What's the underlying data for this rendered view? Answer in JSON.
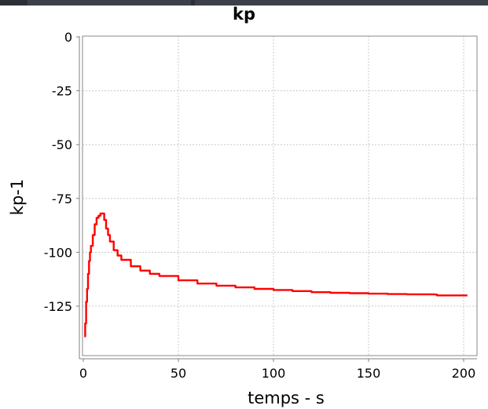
{
  "chart_data": {
    "type": "line",
    "title": "kp",
    "xlabel": "temps - s",
    "ylabel": "kp-1",
    "xlim": [
      0,
      210
    ],
    "ylim": [
      -148,
      0
    ],
    "xticks": [
      0,
      50,
      100,
      150,
      200
    ],
    "yticks": [
      0,
      -25,
      -50,
      -75,
      -100,
      -125
    ],
    "grid": true,
    "series": [
      {
        "color": "#ff0000",
        "x": [
          0.5,
          1,
          1.5,
          2,
          2.5,
          3,
          3.5,
          4,
          5,
          6,
          7,
          8,
          9,
          10,
          11,
          12,
          13,
          14,
          16,
          18,
          20,
          25,
          30,
          35,
          40,
          50,
          60,
          70,
          80,
          90,
          100,
          110,
          120,
          130,
          140,
          150,
          160,
          170,
          180,
          185,
          186,
          202
        ],
        "y": [
          -139,
          -133,
          -123,
          -117,
          -110,
          -104,
          -100,
          -97,
          -92,
          -87,
          -84,
          -83,
          -82,
          -82,
          -85,
          -89,
          -92,
          -95,
          -99,
          -101.5,
          -103.5,
          -106.5,
          -108.5,
          -110,
          -111,
          -113,
          -114.5,
          -115.5,
          -116.3,
          -117,
          -117.5,
          -118,
          -118.5,
          -118.8,
          -119,
          -119.2,
          -119.4,
          -119.5,
          -119.5,
          -119.6,
          -120,
          -120
        ]
      }
    ]
  }
}
